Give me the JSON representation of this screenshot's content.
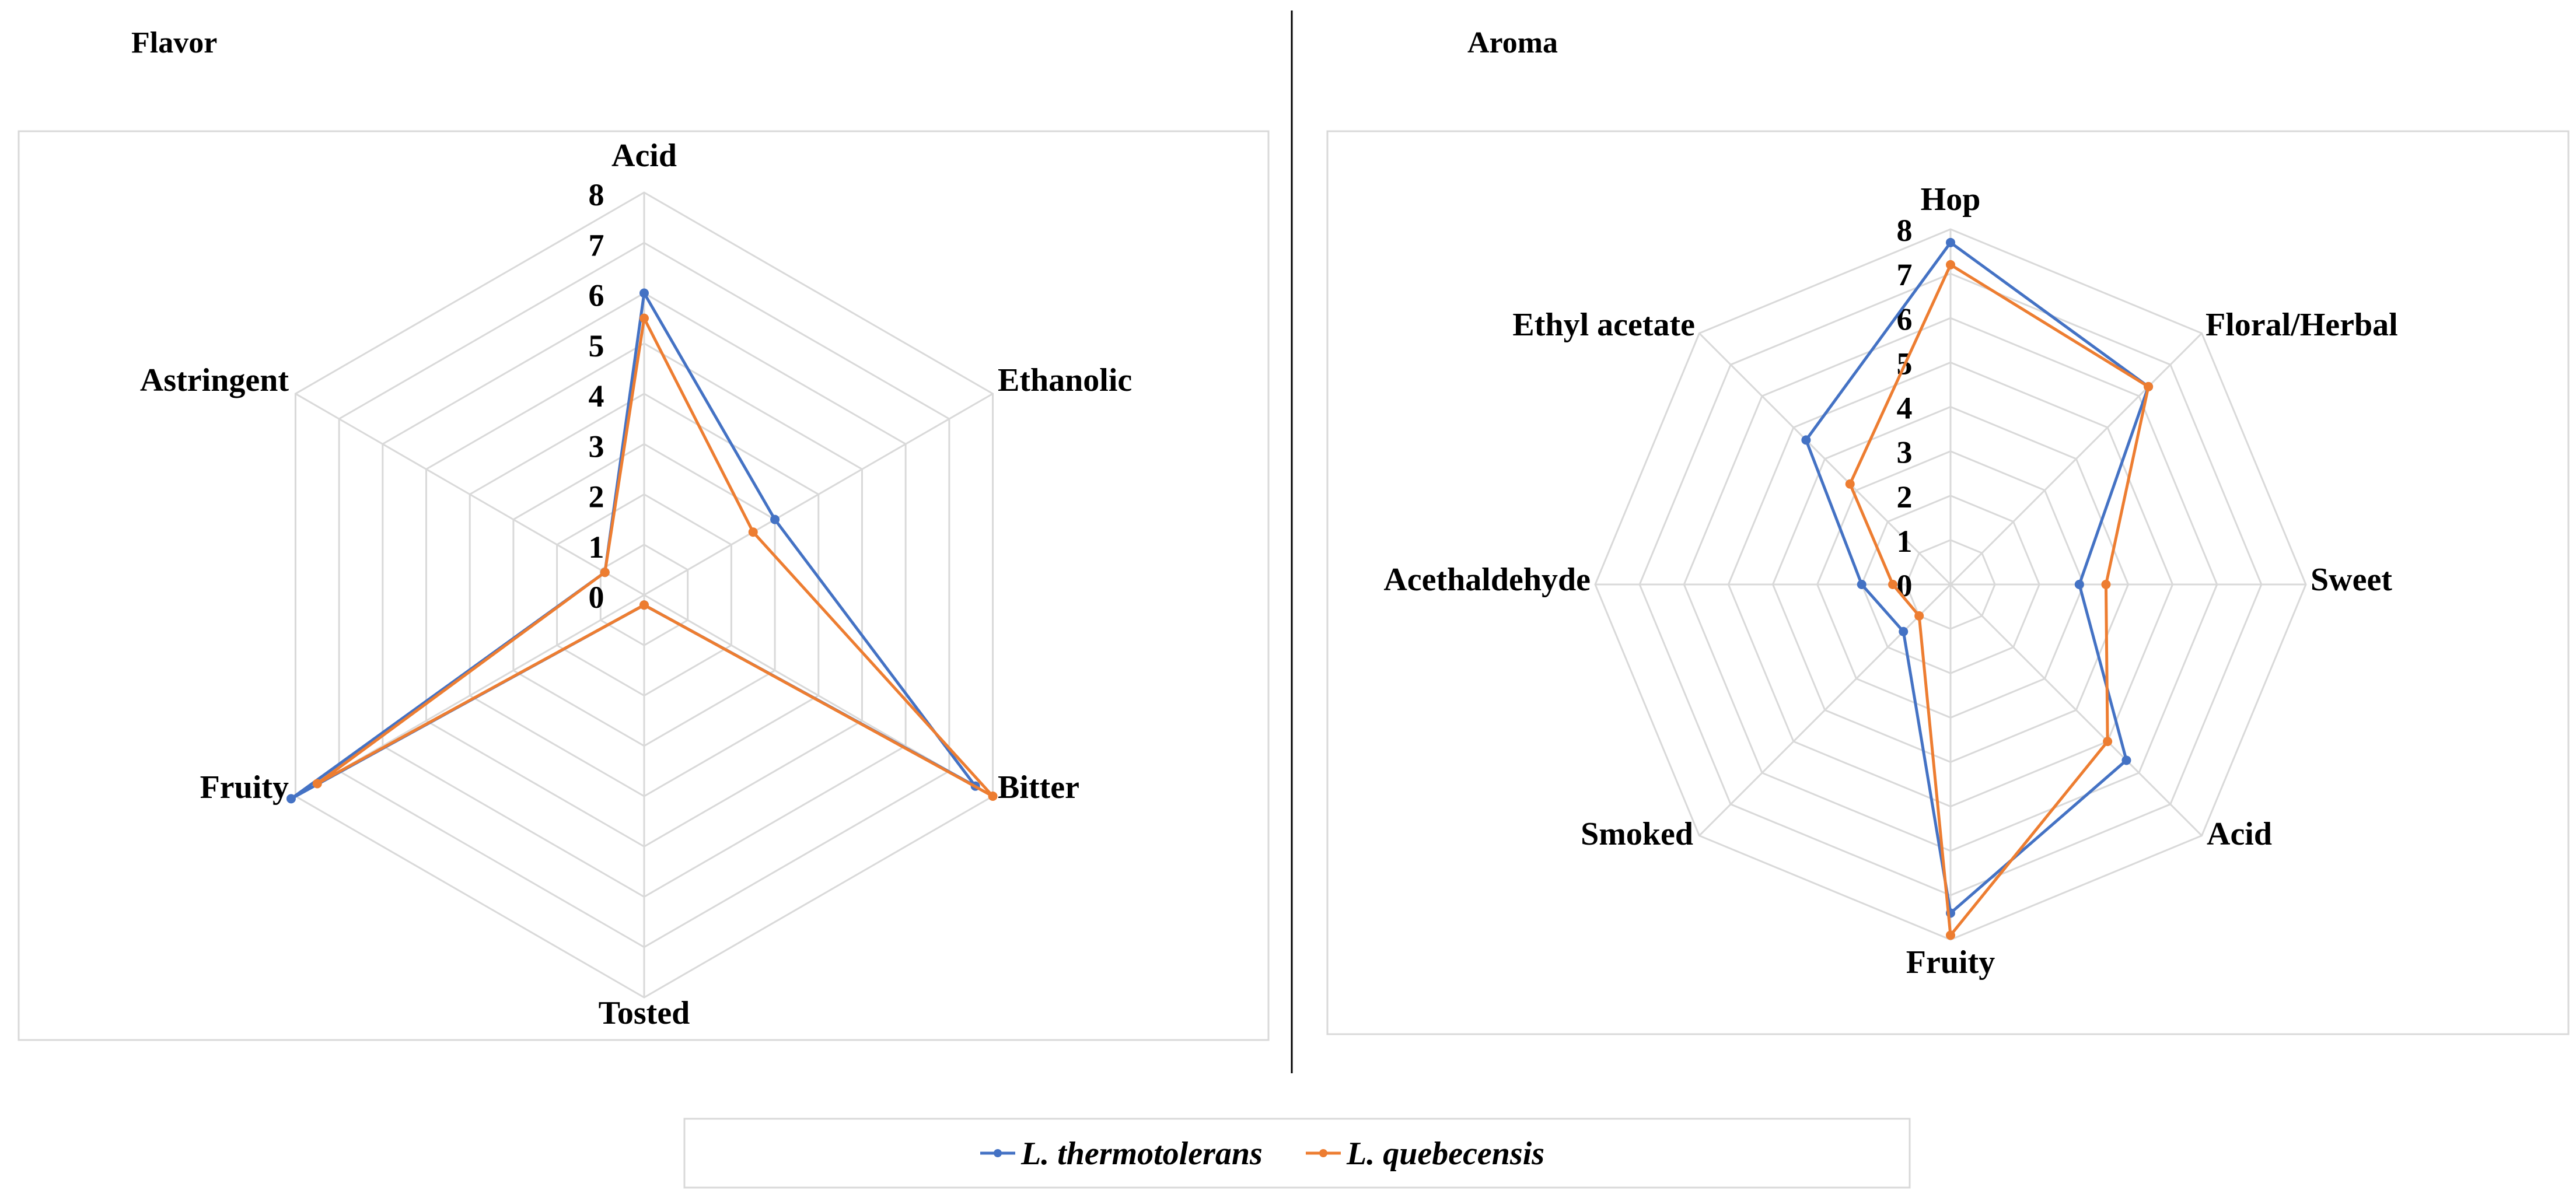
{
  "chart_data": [
    {
      "type": "radar",
      "title": "Flavor",
      "categories": [
        "Acid",
        "Ethanolic",
        "Bitter",
        "Tosted",
        "Fruity",
        "Astringent"
      ],
      "rlim": [
        0,
        8
      ],
      "ticks": [
        "0",
        "1",
        "2",
        "3",
        "4",
        "5",
        "6",
        "7",
        "8"
      ],
      "grid": true,
      "series": [
        {
          "name": "L. thermotolerans",
          "color": "#4472C4",
          "values": [
            6.0,
            3.0,
            7.6,
            0.2,
            8.1,
            0.9
          ]
        },
        {
          "name": "L. quebecensis",
          "color": "#ED7D31",
          "values": [
            5.5,
            2.5,
            8.0,
            0.2,
            7.5,
            0.9
          ]
        }
      ]
    },
    {
      "type": "radar",
      "title": "Aroma",
      "categories": [
        "Hop",
        "Floral/Herbal",
        "Sweet",
        "Acid",
        "Fruity",
        "Smoked",
        "Acethaldehyde",
        "Ethyl acetate"
      ],
      "rlim": [
        0,
        8
      ],
      "ticks": [
        "0",
        "1",
        "2",
        "3",
        "4",
        "5",
        "6",
        "7",
        "8"
      ],
      "grid": true,
      "series": [
        {
          "name": "L. thermotolerans",
          "color": "#4472C4",
          "values": [
            7.7,
            6.3,
            2.9,
            5.6,
            7.4,
            1.5,
            2.0,
            4.6
          ]
        },
        {
          "name": "L. quebecensis",
          "color": "#ED7D31",
          "values": [
            7.2,
            6.3,
            3.5,
            5.0,
            7.9,
            1.0,
            1.3,
            3.2
          ]
        }
      ]
    }
  ],
  "legend": {
    "position": "bottom",
    "items": [
      {
        "label": "L. thermotolerans",
        "color": "#4472C4"
      },
      {
        "label": "L. quebecensis",
        "color": "#ED7D31"
      }
    ]
  }
}
